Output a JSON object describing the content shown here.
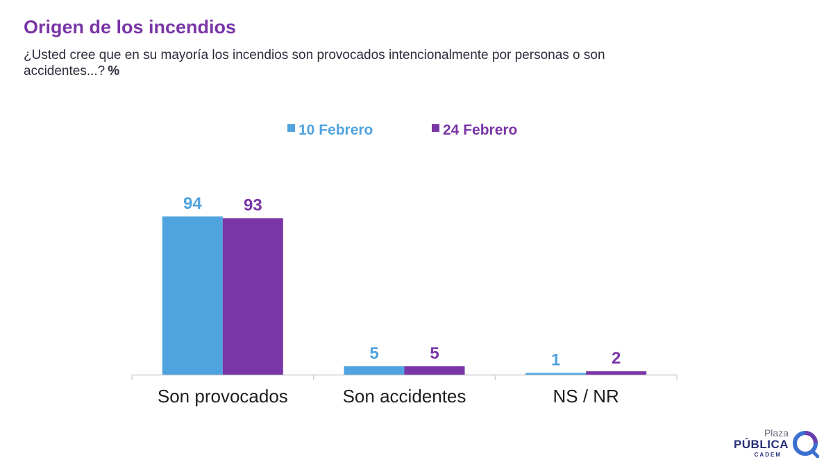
{
  "header": {
    "title": "Origen de los incendios",
    "subtitle": "¿Usted cree que en su mayoría los incendios son provocados intencionalmente por personas o son accidentes...?",
    "unit": "%"
  },
  "brand": {
    "line1": "Plaza",
    "line2": "PÚBLICA",
    "line3": "CADEM",
    "icon": "cadem-swoosh-logo-icon"
  },
  "chart_data": {
    "type": "bar",
    "title": "Origen de los incendios",
    "categories": [
      "Son provocados",
      "Son accidentes",
      "NS / NR"
    ],
    "series": [
      {
        "name": "10 Febrero",
        "values": [
          94,
          5,
          1
        ],
        "color": "#4fa3df"
      },
      {
        "name": "24 Febrero",
        "values": [
          93,
          5,
          2
        ],
        "color": "#7a35a6"
      }
    ],
    "ylim": [
      0,
      100
    ],
    "grid": false,
    "legend": "top-center",
    "data_labels": true
  }
}
